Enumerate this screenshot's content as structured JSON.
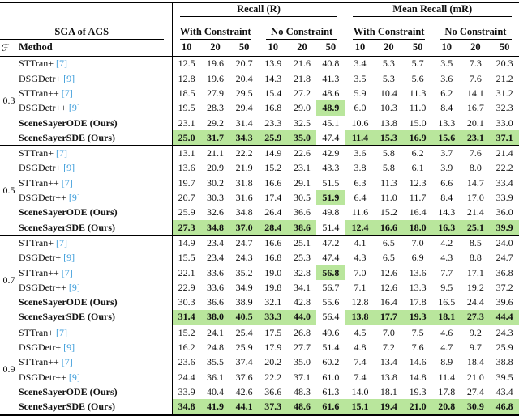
{
  "colors": {
    "highlight": "#b9e69c",
    "citation": "#3f9edb",
    "rule": "#000000"
  },
  "header": {
    "left_group": "SGA of AGS",
    "f_symbol": "ℱ",
    "method_label": "Method",
    "top_groups": [
      "Recall (R)",
      "Mean Recall (mR)"
    ],
    "sub_groups": [
      "With Constraint",
      "No Constraint"
    ],
    "k_values": [
      "10",
      "20",
      "50"
    ]
  },
  "blocks": [
    {
      "f": "0.3",
      "rows": [
        {
          "method": "STTran+",
          "ref": "[7]",
          "bold": false,
          "values": [
            "12.5",
            "19.6",
            "20.7",
            "13.9",
            "21.6",
            "40.8",
            "3.4",
            "5.3",
            "5.7",
            "3.5",
            "7.3",
            "20.3"
          ],
          "highlight": []
        },
        {
          "method": "DSGDetr+",
          "ref": "[9]",
          "bold": false,
          "values": [
            "12.8",
            "19.6",
            "20.4",
            "14.3",
            "21.8",
            "41.3",
            "3.5",
            "5.3",
            "5.6",
            "3.6",
            "7.6",
            "21.2"
          ],
          "highlight": []
        },
        {
          "method": "STTran++",
          "ref": "[7]",
          "bold": false,
          "values": [
            "18.5",
            "27.9",
            "29.5",
            "15.4",
            "27.2",
            "48.6",
            "5.9",
            "10.4",
            "11.3",
            "6.2",
            "14.1",
            "31.2"
          ],
          "highlight": []
        },
        {
          "method": "DSGDetr++",
          "ref": "[9]",
          "bold": false,
          "values": [
            "19.5",
            "28.3",
            "29.4",
            "16.8",
            "29.0",
            "48.9",
            "6.0",
            "10.3",
            "11.0",
            "8.4",
            "16.7",
            "32.3"
          ],
          "highlight": [
            5
          ]
        },
        {
          "method": "SceneSayerODE (Ours)",
          "ref": null,
          "bold": true,
          "values": [
            "23.1",
            "29.2",
            "31.4",
            "23.3",
            "32.5",
            "45.1",
            "10.6",
            "13.8",
            "15.0",
            "13.3",
            "20.1",
            "33.0"
          ],
          "highlight": []
        },
        {
          "method": "SceneSayerSDE (Ours)",
          "ref": null,
          "bold": true,
          "values": [
            "25.0",
            "31.7",
            "34.3",
            "25.9",
            "35.0",
            "47.4",
            "11.4",
            "15.3",
            "16.9",
            "15.6",
            "23.1",
            "37.1"
          ],
          "highlight": [
            0,
            1,
            2,
            3,
            4,
            6,
            7,
            8,
            9,
            10,
            11
          ]
        }
      ]
    },
    {
      "f": "0.5",
      "rows": [
        {
          "method": "STTran+",
          "ref": "[7]",
          "bold": false,
          "values": [
            "13.1",
            "21.1",
            "22.2",
            "14.9",
            "22.6",
            "42.9",
            "3.6",
            "5.8",
            "6.2",
            "3.7",
            "7.6",
            "21.4"
          ],
          "highlight": []
        },
        {
          "method": "DSGDetr+",
          "ref": "[9]",
          "bold": false,
          "values": [
            "13.6",
            "20.9",
            "21.9",
            "15.2",
            "23.1",
            "43.3",
            "3.8",
            "5.8",
            "6.1",
            "3.9",
            "8.0",
            "22.2"
          ],
          "highlight": []
        },
        {
          "method": "STTran++",
          "ref": "[7]",
          "bold": false,
          "values": [
            "19.7",
            "30.2",
            "31.8",
            "16.6",
            "29.1",
            "51.5",
            "6.3",
            "11.3",
            "12.3",
            "6.6",
            "14.7",
            "33.4"
          ],
          "highlight": []
        },
        {
          "method": "DSGDetr++",
          "ref": "[9]",
          "bold": false,
          "values": [
            "20.7",
            "30.3",
            "31.6",
            "17.4",
            "30.5",
            "51.9",
            "6.4",
            "11.0",
            "11.7",
            "8.4",
            "17.0",
            "33.9"
          ],
          "highlight": [
            5
          ]
        },
        {
          "method": "SceneSayerODE (Ours)",
          "ref": null,
          "bold": true,
          "values": [
            "25.9",
            "32.6",
            "34.8",
            "26.4",
            "36.6",
            "49.8",
            "11.6",
            "15.2",
            "16.4",
            "14.3",
            "21.4",
            "36.0"
          ],
          "highlight": []
        },
        {
          "method": "SceneSayerSDE (Ours)",
          "ref": null,
          "bold": true,
          "values": [
            "27.3",
            "34.8",
            "37.0",
            "28.4",
            "38.6",
            "51.4",
            "12.4",
            "16.6",
            "18.0",
            "16.3",
            "25.1",
            "39.9"
          ],
          "highlight": [
            0,
            1,
            2,
            3,
            4,
            6,
            7,
            8,
            9,
            10,
            11
          ]
        }
      ]
    },
    {
      "f": "0.7",
      "rows": [
        {
          "method": "STTran+",
          "ref": "[7]",
          "bold": false,
          "values": [
            "14.9",
            "23.4",
            "24.7",
            "16.6",
            "25.1",
            "47.2",
            "4.1",
            "6.5",
            "7.0",
            "4.2",
            "8.5",
            "24.0"
          ],
          "highlight": []
        },
        {
          "method": "DSGDetr+",
          "ref": "[9]",
          "bold": false,
          "values": [
            "15.5",
            "23.4",
            "24.3",
            "16.8",
            "25.3",
            "47.4",
            "4.3",
            "6.5",
            "6.9",
            "4.3",
            "8.8",
            "24.7"
          ],
          "highlight": []
        },
        {
          "method": "STTran++",
          "ref": "[7]",
          "bold": false,
          "values": [
            "22.1",
            "33.6",
            "35.2",
            "19.0",
            "32.8",
            "56.8",
            "7.0",
            "12.6",
            "13.6",
            "7.7",
            "17.1",
            "36.8"
          ],
          "highlight": [
            5
          ]
        },
        {
          "method": "DSGDetr++",
          "ref": "[9]",
          "bold": false,
          "values": [
            "22.9",
            "33.6",
            "34.9",
            "19.8",
            "34.1",
            "56.7",
            "7.1",
            "12.6",
            "13.3",
            "9.5",
            "19.2",
            "37.2"
          ],
          "highlight": []
        },
        {
          "method": "SceneSayerODE (Ours)",
          "ref": null,
          "bold": true,
          "values": [
            "30.3",
            "36.6",
            "38.9",
            "32.1",
            "42.8",
            "55.6",
            "12.8",
            "16.4",
            "17.8",
            "16.5",
            "24.4",
            "39.6"
          ],
          "highlight": []
        },
        {
          "method": "SceneSayerSDE (Ours)",
          "ref": null,
          "bold": true,
          "values": [
            "31.4",
            "38.0",
            "40.5",
            "33.3",
            "44.0",
            "56.4",
            "13.8",
            "17.7",
            "19.3",
            "18.1",
            "27.3",
            "44.4"
          ],
          "highlight": [
            0,
            1,
            2,
            3,
            4,
            6,
            7,
            8,
            9,
            10,
            11
          ]
        }
      ]
    },
    {
      "f": "0.9",
      "rows": [
        {
          "method": "STTran+",
          "ref": "[7]",
          "bold": false,
          "values": [
            "15.2",
            "24.1",
            "25.4",
            "17.5",
            "26.8",
            "49.6",
            "4.5",
            "7.0",
            "7.5",
            "4.6",
            "9.2",
            "24.3"
          ],
          "highlight": []
        },
        {
          "method": "DSGDetr+",
          "ref": "[9]",
          "bold": false,
          "values": [
            "16.2",
            "24.8",
            "25.9",
            "17.9",
            "27.7",
            "51.4",
            "4.8",
            "7.2",
            "7.6",
            "4.7",
            "9.7",
            "25.9"
          ],
          "highlight": []
        },
        {
          "method": "STTran++",
          "ref": "[7]",
          "bold": false,
          "values": [
            "23.6",
            "35.5",
            "37.4",
            "20.2",
            "35.0",
            "60.2",
            "7.4",
            "13.4",
            "14.6",
            "8.9",
            "18.4",
            "38.8"
          ],
          "highlight": []
        },
        {
          "method": "DSGDetr++",
          "ref": "[9]",
          "bold": false,
          "values": [
            "24.4",
            "36.1",
            "37.6",
            "22.2",
            "37.1",
            "61.0",
            "7.4",
            "13.8",
            "14.8",
            "11.4",
            "21.0",
            "39.5"
          ],
          "highlight": []
        },
        {
          "method": "SceneSayerODE (Ours)",
          "ref": null,
          "bold": true,
          "values": [
            "33.9",
            "40.4",
            "42.6",
            "36.6",
            "48.3",
            "61.3",
            "14.0",
            "18.1",
            "19.3",
            "17.8",
            "27.4",
            "43.4"
          ],
          "highlight": []
        },
        {
          "method": "SceneSayerSDE (Ours)",
          "ref": null,
          "bold": true,
          "values": [
            "34.8",
            "41.9",
            "44.1",
            "37.3",
            "48.6",
            "61.6",
            "15.1",
            "19.4",
            "21.0",
            "20.8",
            "30.9",
            "46.8"
          ],
          "highlight": [
            0,
            1,
            2,
            3,
            4,
            5,
            6,
            7,
            8,
            9,
            10,
            11
          ]
        }
      ]
    }
  ]
}
